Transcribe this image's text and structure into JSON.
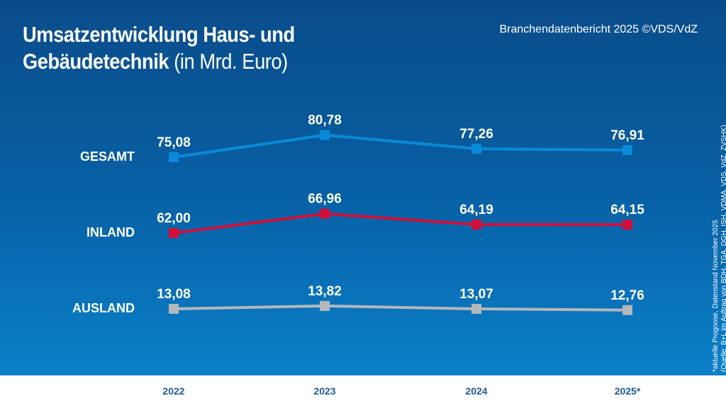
{
  "header": {
    "title_bold": "Umsatzentwicklung Haus- und Gebäudetechnik",
    "title_light": "(in Mrd. Euro)",
    "source": "Branchendatenbericht 2025 ©VDS/VdZ"
  },
  "footnote": {
    "line1": "*aktuelle Prognose, Datenstand November 2025",
    "line2": "(Quelle: B+L im Auftrag von BDH, TGA, DGH, ISH, VDMA, VDS, VdZ, ZVSHK)"
  },
  "chart_data": {
    "type": "line",
    "title": "Umsatzentwicklung Haus- und Gebäudetechnik (in Mrd. Euro)",
    "categories": [
      "2022",
      "2023",
      "2024",
      "2025*"
    ],
    "series": [
      {
        "name": "GESAMT",
        "values": [
          75.08,
          80.78,
          77.26,
          76.91
        ],
        "labels": [
          "75,08",
          "80,78",
          "77,26",
          "76,91"
        ],
        "color": "#0a8ad8"
      },
      {
        "name": "INLAND",
        "values": [
          62.0,
          66.96,
          64.19,
          64.15
        ],
        "labels": [
          "62,00",
          "66,96",
          "64,19",
          "64,15"
        ],
        "color": "#d0103a"
      },
      {
        "name": "AUSLAND",
        "values": [
          13.08,
          13.82,
          13.07,
          12.76
        ],
        "labels": [
          "13,08",
          "13,82",
          "13,07",
          "12,76"
        ],
        "color": "#b4b8bd"
      }
    ],
    "grid": false,
    "legend": "left"
  }
}
